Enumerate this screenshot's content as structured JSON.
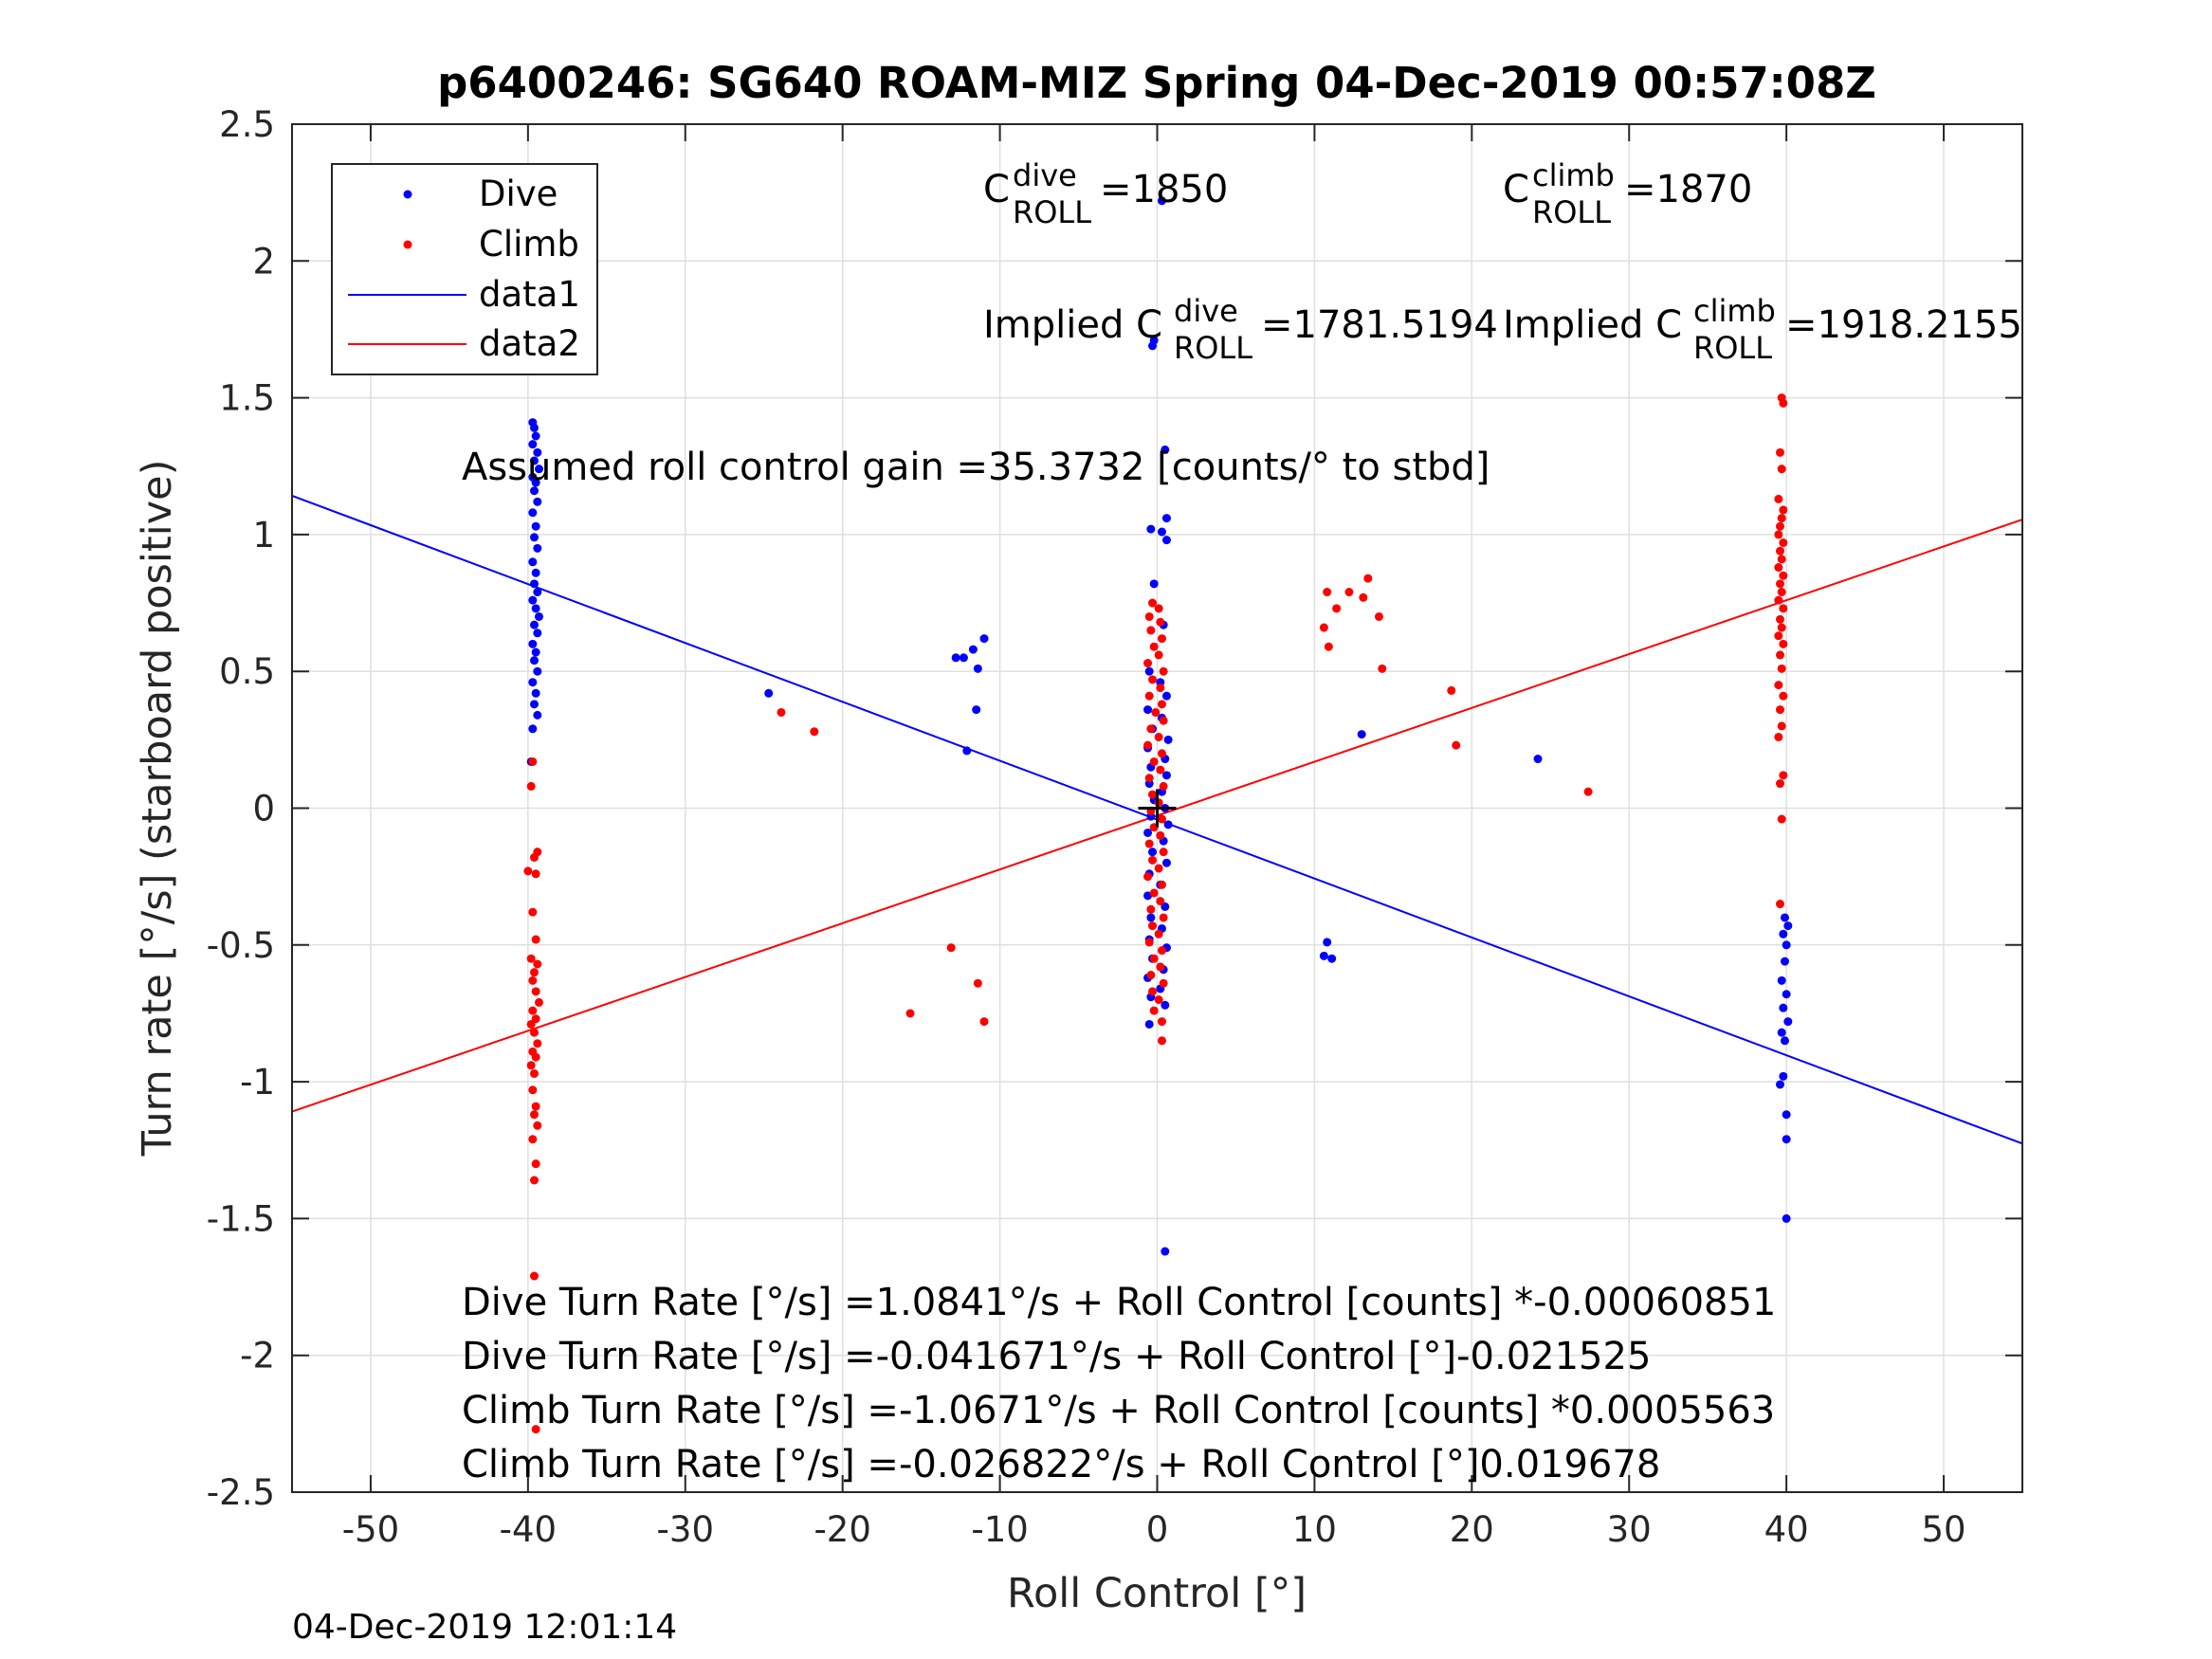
{
  "chart_data": {
    "type": "scatter",
    "title": "p6400246: SG640 ROAM-MIZ Spring 04-Dec-2019 00:57:08Z",
    "xlabel": "Roll Control [°]",
    "ylabel": "Turn rate [°/s] (starboard positive)",
    "xlim": [
      -55,
      55
    ],
    "ylim": [
      -2.5,
      2.5
    ],
    "xticks": [
      -50,
      -40,
      -30,
      -20,
      -10,
      0,
      10,
      20,
      30,
      40,
      50
    ],
    "yticks": [
      -2.5,
      -2,
      -1.5,
      -1,
      -0.5,
      0,
      0.5,
      1,
      1.5,
      2,
      2.5
    ],
    "xtick_labels": [
      "-50",
      "-40",
      "-30",
      "-20",
      "-10",
      "0",
      "10",
      "20",
      "30",
      "40",
      "50"
    ],
    "ytick_labels": [
      "-2.5",
      "-2",
      "-1.5",
      "-1",
      "-0.5",
      "0",
      "0.5",
      "1",
      "1.5",
      "2",
      "2.5"
    ],
    "grid": true,
    "legend_position": "top-left",
    "series": [
      {
        "name": "Dive",
        "kind": "points",
        "color": "#0000ff",
        "points": [
          [
            -39.7,
            1.41
          ],
          [
            -39.6,
            1.39
          ],
          [
            -39.5,
            1.36
          ],
          [
            -39.7,
            1.33
          ],
          [
            -39.4,
            1.3
          ],
          [
            -39.6,
            1.27
          ],
          [
            -39.3,
            1.24
          ],
          [
            -39.7,
            1.21
          ],
          [
            -39.5,
            1.19
          ],
          [
            -39.6,
            1.16
          ],
          [
            -39.4,
            1.12
          ],
          [
            -39.7,
            1.08
          ],
          [
            -39.5,
            1.03
          ],
          [
            -39.6,
            0.99
          ],
          [
            -39.4,
            0.95
          ],
          [
            -39.7,
            0.9
          ],
          [
            -39.5,
            0.86
          ],
          [
            -39.6,
            0.82
          ],
          [
            -39.4,
            0.79
          ],
          [
            -39.7,
            0.76
          ],
          [
            -39.5,
            0.73
          ],
          [
            -39.3,
            0.7
          ],
          [
            -39.6,
            0.67
          ],
          [
            -39.4,
            0.64
          ],
          [
            -39.7,
            0.6
          ],
          [
            -39.5,
            0.57
          ],
          [
            -39.6,
            0.54
          ],
          [
            -39.4,
            0.5
          ],
          [
            -39.7,
            0.46
          ],
          [
            -39.5,
            0.42
          ],
          [
            -39.6,
            0.38
          ],
          [
            -39.4,
            0.34
          ],
          [
            -39.7,
            0.29
          ],
          [
            -39.8,
            0.17
          ],
          [
            -24.7,
            0.42
          ],
          [
            -12.8,
            0.55
          ],
          [
            -12.3,
            0.55
          ],
          [
            -11.7,
            0.58
          ],
          [
            -11.0,
            0.62
          ],
          [
            -11.4,
            0.51
          ],
          [
            -11.5,
            0.36
          ],
          [
            -12.1,
            0.21
          ],
          [
            0.3,
            2.22
          ],
          [
            -0.2,
            1.71
          ],
          [
            -0.3,
            1.69
          ],
          [
            0.5,
            1.31
          ],
          [
            0.6,
            1.06
          ],
          [
            -0.4,
            1.02
          ],
          [
            0.3,
            1.01
          ],
          [
            0.6,
            0.98
          ],
          [
            -0.2,
            0.82
          ],
          [
            0.4,
            0.67
          ],
          [
            -0.5,
            0.5
          ],
          [
            0.2,
            0.46
          ],
          [
            0.6,
            0.41
          ],
          [
            -0.6,
            0.36
          ],
          [
            0.3,
            0.33
          ],
          [
            -0.3,
            0.29
          ],
          [
            0.7,
            0.25
          ],
          [
            -0.6,
            0.22
          ],
          [
            0.5,
            0.18
          ],
          [
            -0.4,
            0.15
          ],
          [
            0.6,
            0.12
          ],
          [
            -0.5,
            0.09
          ],
          [
            0.3,
            0.06
          ],
          [
            -0.2,
            0.03
          ],
          [
            0.5,
            0.0
          ],
          [
            -0.4,
            -0.03
          ],
          [
            0.7,
            -0.06
          ],
          [
            -0.6,
            -0.09
          ],
          [
            0.4,
            -0.12
          ],
          [
            -0.3,
            -0.16
          ],
          [
            0.6,
            -0.2
          ],
          [
            -0.5,
            -0.24
          ],
          [
            0.2,
            -0.28
          ],
          [
            -0.6,
            -0.32
          ],
          [
            0.5,
            -0.36
          ],
          [
            -0.4,
            -0.4
          ],
          [
            0.3,
            -0.44
          ],
          [
            -0.5,
            -0.48
          ],
          [
            0.6,
            -0.51
          ],
          [
            -0.3,
            -0.55
          ],
          [
            0.4,
            -0.59
          ],
          [
            -0.6,
            -0.62
          ],
          [
            0.2,
            -0.66
          ],
          [
            -0.4,
            -0.69
          ],
          [
            0.5,
            -0.72
          ],
          [
            -0.5,
            -0.79
          ],
          [
            0.5,
            -1.62
          ],
          [
            10.6,
            -0.54
          ],
          [
            10.8,
            -0.49
          ],
          [
            11.1,
            -0.55
          ],
          [
            13.0,
            0.27
          ],
          [
            24.2,
            0.18
          ],
          [
            39.9,
            -0.4
          ],
          [
            40.1,
            -0.43
          ],
          [
            39.8,
            -0.46
          ],
          [
            40.0,
            -0.5
          ],
          [
            39.9,
            -0.56
          ],
          [
            39.7,
            -0.63
          ],
          [
            40.0,
            -0.68
          ],
          [
            39.8,
            -0.73
          ],
          [
            40.1,
            -0.78
          ],
          [
            39.7,
            -0.82
          ],
          [
            39.9,
            -0.85
          ],
          [
            39.8,
            -0.98
          ],
          [
            39.6,
            -1.01
          ],
          [
            40.0,
            -1.12
          ],
          [
            40.0,
            -1.21
          ],
          [
            40.0,
            -1.5
          ]
        ]
      },
      {
        "name": "Climb",
        "kind": "points",
        "color": "#ff0000",
        "points": [
          [
            -39.7,
            0.17
          ],
          [
            -39.8,
            0.08
          ],
          [
            -39.4,
            -0.16
          ],
          [
            -39.6,
            -0.18
          ],
          [
            -40.0,
            -0.23
          ],
          [
            -39.5,
            -0.24
          ],
          [
            -39.7,
            -0.38
          ],
          [
            -39.5,
            -0.48
          ],
          [
            -39.8,
            -0.55
          ],
          [
            -39.4,
            -0.57
          ],
          [
            -39.6,
            -0.6
          ],
          [
            -39.7,
            -0.63
          ],
          [
            -39.5,
            -0.67
          ],
          [
            -39.3,
            -0.71
          ],
          [
            -39.7,
            -0.74
          ],
          [
            -39.5,
            -0.77
          ],
          [
            -39.8,
            -0.79
          ],
          [
            -39.6,
            -0.82
          ],
          [
            -39.4,
            -0.86
          ],
          [
            -39.7,
            -0.89
          ],
          [
            -39.5,
            -0.91
          ],
          [
            -39.8,
            -0.94
          ],
          [
            -39.6,
            -0.97
          ],
          [
            -39.7,
            -1.03
          ],
          [
            -39.5,
            -1.09
          ],
          [
            -39.6,
            -1.12
          ],
          [
            -39.4,
            -1.16
          ],
          [
            -39.7,
            -1.21
          ],
          [
            -39.5,
            -1.3
          ],
          [
            -39.6,
            -1.36
          ],
          [
            -39.6,
            -1.71
          ],
          [
            -39.5,
            -2.27
          ],
          [
            -23.9,
            0.35
          ],
          [
            -21.8,
            0.28
          ],
          [
            -15.7,
            -0.75
          ],
          [
            -13.1,
            -0.51
          ],
          [
            -11.4,
            -0.64
          ],
          [
            -11.0,
            -0.78
          ],
          [
            -0.3,
            0.75
          ],
          [
            0.1,
            0.73
          ],
          [
            -0.5,
            0.7
          ],
          [
            0.2,
            0.68
          ],
          [
            -0.4,
            0.65
          ],
          [
            0.3,
            0.62
          ],
          [
            -0.2,
            0.59
          ],
          [
            0.1,
            0.56
          ],
          [
            -0.6,
            0.53
          ],
          [
            0.4,
            0.5
          ],
          [
            -0.3,
            0.47
          ],
          [
            0.2,
            0.44
          ],
          [
            -0.5,
            0.41
          ],
          [
            0.3,
            0.38
          ],
          [
            -0.1,
            0.35
          ],
          [
            0.4,
            0.32
          ],
          [
            -0.4,
            0.29
          ],
          [
            0.1,
            0.26
          ],
          [
            -0.6,
            0.23
          ],
          [
            0.3,
            0.2
          ],
          [
            -0.2,
            0.17
          ],
          [
            0.2,
            0.14
          ],
          [
            -0.5,
            0.11
          ],
          [
            0.4,
            0.08
          ],
          [
            -0.3,
            0.05
          ],
          [
            0.1,
            0.02
          ],
          [
            -0.4,
            -0.01
          ],
          [
            0.3,
            -0.04
          ],
          [
            -0.2,
            -0.07
          ],
          [
            0.2,
            -0.1
          ],
          [
            -0.5,
            -0.13
          ],
          [
            0.4,
            -0.16
          ],
          [
            -0.3,
            -0.19
          ],
          [
            0.1,
            -0.22
          ],
          [
            -0.6,
            -0.25
          ],
          [
            0.3,
            -0.28
          ],
          [
            -0.2,
            -0.31
          ],
          [
            0.2,
            -0.34
          ],
          [
            -0.4,
            -0.37
          ],
          [
            0.4,
            -0.4
          ],
          [
            -0.3,
            -0.43
          ],
          [
            0.1,
            -0.46
          ],
          [
            -0.5,
            -0.49
          ],
          [
            0.3,
            -0.52
          ],
          [
            -0.2,
            -0.55
          ],
          [
            0.2,
            -0.58
          ],
          [
            -0.4,
            -0.61
          ],
          [
            0.4,
            -0.64
          ],
          [
            -0.3,
            -0.67
          ],
          [
            0.1,
            -0.7
          ],
          [
            -0.2,
            -0.74
          ],
          [
            0.3,
            -0.78
          ],
          [
            0.3,
            -0.85
          ],
          [
            10.6,
            0.66
          ],
          [
            10.9,
            0.59
          ],
          [
            10.8,
            0.79
          ],
          [
            11.4,
            0.73
          ],
          [
            12.2,
            0.79
          ],
          [
            13.1,
            0.77
          ],
          [
            13.4,
            0.84
          ],
          [
            14.1,
            0.7
          ],
          [
            14.3,
            0.51
          ],
          [
            18.7,
            0.43
          ],
          [
            19.0,
            0.23
          ],
          [
            27.4,
            0.06
          ],
          [
            39.7,
            1.5
          ],
          [
            39.8,
            1.48
          ],
          [
            39.6,
            1.3
          ],
          [
            39.7,
            1.24
          ],
          [
            39.5,
            1.13
          ],
          [
            39.8,
            1.09
          ],
          [
            39.7,
            1.06
          ],
          [
            39.6,
            1.03
          ],
          [
            39.5,
            1.0
          ],
          [
            39.8,
            0.97
          ],
          [
            39.6,
            0.94
          ],
          [
            39.7,
            0.91
          ],
          [
            39.5,
            0.88
          ],
          [
            39.8,
            0.85
          ],
          [
            39.6,
            0.82
          ],
          [
            39.7,
            0.79
          ],
          [
            39.5,
            0.76
          ],
          [
            39.8,
            0.73
          ],
          [
            39.6,
            0.69
          ],
          [
            39.7,
            0.66
          ],
          [
            39.5,
            0.63
          ],
          [
            39.8,
            0.6
          ],
          [
            39.6,
            0.56
          ],
          [
            39.7,
            0.51
          ],
          [
            39.5,
            0.45
          ],
          [
            39.8,
            0.41
          ],
          [
            39.6,
            0.36
          ],
          [
            39.7,
            0.3
          ],
          [
            39.5,
            0.26
          ],
          [
            39.8,
            0.12
          ],
          [
            39.6,
            0.09
          ],
          [
            39.7,
            -0.04
          ],
          [
            39.6,
            -0.35
          ]
        ]
      },
      {
        "name": "data1",
        "kind": "line",
        "color": "#0000ff",
        "x": [
          -55,
          55
        ],
        "y": [
          1.142,
          -1.226
        ]
      },
      {
        "name": "data2",
        "kind": "line",
        "color": "#ff0000",
        "x": [
          -55,
          55
        ],
        "y": [
          -1.109,
          1.055
        ]
      }
    ],
    "center_marker": {
      "x": 0,
      "y": 0
    }
  },
  "annotations": {
    "c_dive": {
      "base": "C",
      "sup": "dive",
      "sub": "ROLL",
      "value": " =1850"
    },
    "c_climb": {
      "base": "C",
      "sup": "climb",
      "sub": "ROLL",
      "value": " =1870"
    },
    "implied_dive": {
      "prefix": "Implied C",
      "sup": "dive",
      "sub": "ROLL",
      "value": " =1781.5194"
    },
    "implied_climb": {
      "prefix": "Implied C",
      "sup": "climb",
      "sub": "ROLL",
      "value": " =1918.2155"
    },
    "gain": "Assumed roll control gain =35.3732 [counts/° to stbd]",
    "equations": [
      "Dive Turn Rate [°/s] =1.0841°/s + Roll Control [counts] *-0.00060851",
      "Dive Turn Rate [°/s] =-0.041671°/s + Roll Control [°]-0.021525",
      "Climb Turn Rate [°/s] =-1.0671°/s + Roll Control [counts] *0.0005563",
      "Climb Turn Rate [°/s] =-0.026822°/s + Roll Control [°]0.019678"
    ]
  },
  "footer": "04-Dec-2019 12:01:14"
}
